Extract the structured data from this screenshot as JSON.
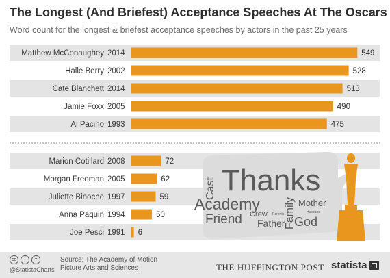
{
  "header": {
    "title": "The Longest (And Briefest) Acceptance Speeches At The Oscars",
    "subtitle": "Word count for the longest & briefest acceptance speeches by actors in the past 25 years"
  },
  "chart_data": {
    "type": "bar",
    "orientation": "horizontal",
    "title": "The Longest (And Briefest) Acceptance Speeches At The Oscars",
    "subtitle": "Word count for the longest & briefest acceptance speeches by actors in the past 25 years",
    "bar_color": "#e8961e",
    "band_color": "#e4e4e4",
    "groups": [
      {
        "group": "longest",
        "rows": [
          {
            "name": "Matthew McConaughey",
            "year": "2014",
            "value": 549
          },
          {
            "name": "Halle Berry",
            "year": "2002",
            "value": 528
          },
          {
            "name": "Cate Blanchett",
            "year": "2014",
            "value": 513
          },
          {
            "name": "Jamie Foxx",
            "year": "2005",
            "value": 490
          },
          {
            "name": "Al Pacino",
            "year": "1993",
            "value": 475
          }
        ]
      },
      {
        "group": "briefest",
        "rows": [
          {
            "name": "Marion Cotillard",
            "year": "2008",
            "value": 72
          },
          {
            "name": "Morgan Freeman",
            "year": "2005",
            "value": 62
          },
          {
            "name": "Juliette Binoche",
            "year": "1997",
            "value": 59
          },
          {
            "name": "Anna Paquin",
            "year": "1994",
            "value": 50
          },
          {
            "name": "Joe Pesci",
            "year": "1991",
            "value": 6
          }
        ]
      }
    ],
    "grid": false,
    "legend": "none"
  },
  "word_cloud": {
    "words": [
      "Thanks",
      "Cast",
      "Academy",
      "Friend",
      "Crew",
      "Parents",
      "Father",
      "Family",
      "Mother",
      "Husband",
      "God"
    ],
    "color": "#5a5a5a",
    "bubble_color": "#dcdcdc",
    "statuette_color": "#e8961e"
  },
  "footer": {
    "cc_icons": [
      "cc",
      "i",
      "="
    ],
    "handle": "@StatistaCharts",
    "source": "Source: The Academy of Motion Picture Arts and Sciences",
    "publisher": "The Huffington Post",
    "brand": "statista"
  }
}
